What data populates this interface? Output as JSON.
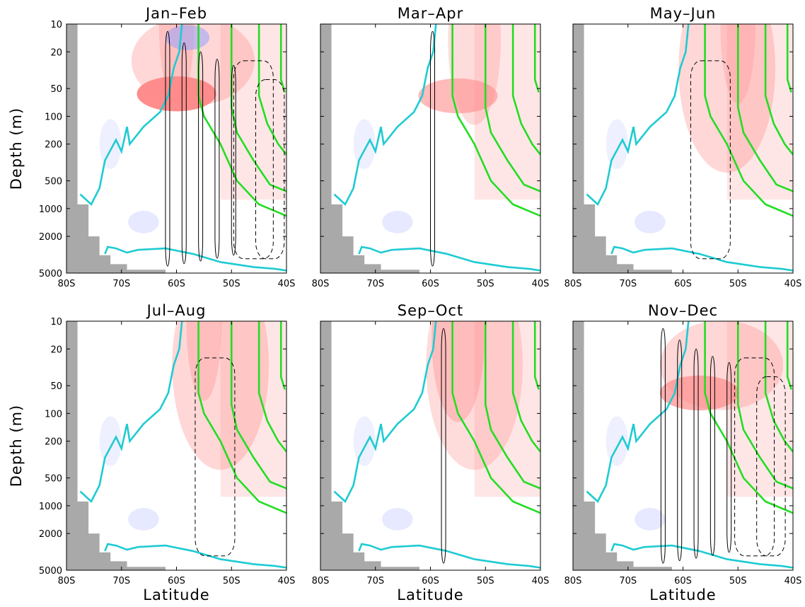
{
  "chart_data": [
    {
      "type": "heatmap",
      "title": "Jan–Feb",
      "xlabel": "",
      "ylabel": "Depth (m)",
      "show_ylabels": true,
      "warm": [
        [
          60,
          57,
          50,
          0.95
        ],
        [
          60,
          57,
          50,
          0.8
        ],
        [
          57,
          25,
          100,
          0.35
        ],
        [
          60,
          10,
          20,
          0.3
        ]
      ],
      "cool": [
        [
          58,
          14,
          10,
          0.5
        ],
        [
          72,
          200,
          30,
          0.15
        ]
      ],
      "contour_solid": [
        62,
        59,
        56,
        53,
        50
      ],
      "contour_dashed": [
        46,
        43
      ]
    },
    {
      "type": "heatmap",
      "title": "Mar–Apr",
      "xlabel": "",
      "ylabel": "",
      "show_ylabels": false,
      "warm": [
        [
          55,
          60,
          50,
          0.6
        ],
        [
          52,
          15,
          200,
          0.3
        ]
      ],
      "cool": [
        [
          58,
          14,
          10,
          0.0
        ],
        [
          72,
          200,
          30,
          0.15
        ]
      ],
      "contour_solid": [
        60
      ],
      "contour_dashed": []
    },
    {
      "type": "heatmap",
      "title": "May–Jun",
      "xlabel": "",
      "ylabel": "",
      "show_ylabels": false,
      "warm": [
        [
          52,
          30,
          300,
          0.35
        ],
        [
          50,
          10,
          20,
          0.3
        ]
      ],
      "cool": [
        [
          72,
          200,
          30,
          0.15
        ]
      ],
      "contour_solid": [],
      "contour_dashed": [
        55
      ]
    },
    {
      "type": "heatmap",
      "title": "Jul–Aug",
      "xlabel": "Latitude",
      "ylabel": "Depth (m)",
      "show_ylabels": true,
      "warm": [
        [
          52,
          30,
          300,
          0.35
        ],
        [
          55,
          10,
          20,
          0.35
        ]
      ],
      "cool": [
        [
          72,
          200,
          30,
          0.15
        ]
      ],
      "contour_solid": [],
      "contour_dashed": [
        53
      ]
    },
    {
      "type": "heatmap",
      "title": "Sep–Oct",
      "xlabel": "Latitude",
      "ylabel": "",
      "show_ylabels": false,
      "warm": [
        [
          55,
          15,
          200,
          0.4
        ],
        [
          52,
          30,
          300,
          0.3
        ]
      ],
      "cool": [
        [
          72,
          200,
          30,
          0.15
        ]
      ],
      "contour_solid": [
        58
      ],
      "contour_dashed": []
    },
    {
      "type": "heatmap",
      "title": "Nov–Dec",
      "xlabel": "Latitude",
      "ylabel": "",
      "show_ylabels": false,
      "warm": [
        [
          57,
          60,
          50,
          0.7
        ],
        [
          53,
          30,
          100,
          0.35
        ]
      ],
      "cool": [
        [
          72,
          200,
          30,
          0.15
        ]
      ],
      "contour_solid": [
        64,
        61,
        58,
        55,
        52
      ],
      "contour_dashed": [
        47,
        44
      ]
    }
  ],
  "axes": {
    "x_ticks": [
      "80S",
      "70S",
      "60S",
      "50S",
      "40S"
    ],
    "x_values": [
      -80,
      -70,
      -60,
      -50,
      -40
    ],
    "y_ticks": [
      "10",
      "20",
      "50",
      "100",
      "200",
      "500",
      "1000",
      "2000",
      "5000"
    ],
    "y_values": [
      10,
      20,
      50,
      100,
      200,
      500,
      1000,
      2000,
      5000
    ],
    "xlim": [
      -80,
      -40
    ],
    "ylim": [
      10,
      5000
    ],
    "y_scale": "log",
    "y_inverted": true
  },
  "colors": {
    "warm": "#ff8c8c",
    "cool": "#8c9cff",
    "land": "#a9a9a9",
    "cyan_line": "#1ecbd2",
    "green_line": "#22dd22",
    "contour": "#000000"
  }
}
